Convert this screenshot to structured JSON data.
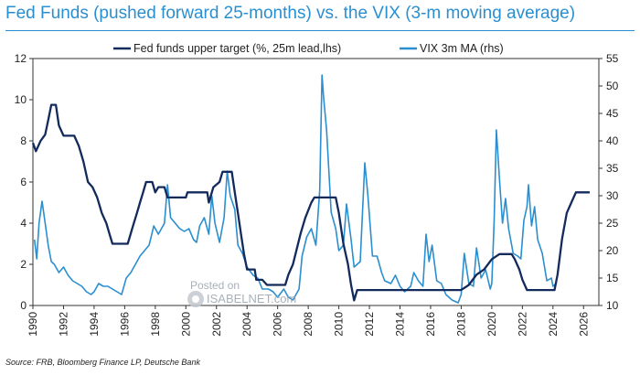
{
  "title": "Fed Funds (pushed forward 25-months) vs. the VIX (3-m moving average)",
  "source": "Source: FRB, Bloomberg Finance LP, Deutsche Bank",
  "watermark": {
    "line1": "Posted on",
    "line2": "ISABELNET.com"
  },
  "colors": {
    "fed": "#132a5c",
    "vix": "#2a8fd0",
    "title": "#2a8fd0"
  },
  "chart_data": {
    "type": "line",
    "legend_position": "top-center",
    "grid": false,
    "x_range": [
      1990,
      2027
    ],
    "x_ticks": [
      "1990",
      "1992",
      "1994",
      "1996",
      "1998",
      "2000",
      "2002",
      "2004",
      "2006",
      "2008",
      "2010",
      "2012",
      "2014",
      "2016",
      "2018",
      "2020",
      "2022",
      "2024",
      "2026"
    ],
    "y_left": {
      "range": [
        0,
        12
      ],
      "ticks": [
        "0",
        "2",
        "4",
        "6",
        "8",
        "10",
        "12"
      ]
    },
    "y_right": {
      "range": [
        10,
        55
      ],
      "ticks": [
        "10",
        "15",
        "20",
        "25",
        "30",
        "35",
        "40",
        "45",
        "50",
        "55"
      ]
    },
    "series": [
      {
        "name": "Fed funds upper target (%, 25m lead,lhs)",
        "axis": "left",
        "points": [
          [
            1990.0,
            7.9
          ],
          [
            1990.2,
            7.5
          ],
          [
            1990.5,
            8.0
          ],
          [
            1990.8,
            8.3
          ],
          [
            1991.0,
            9.0
          ],
          [
            1991.2,
            9.75
          ],
          [
            1991.5,
            9.75
          ],
          [
            1991.7,
            8.75
          ],
          [
            1992.0,
            8.25
          ],
          [
            1992.7,
            8.25
          ],
          [
            1993.0,
            7.75
          ],
          [
            1993.3,
            7.0
          ],
          [
            1993.6,
            6.0
          ],
          [
            1993.9,
            5.75
          ],
          [
            1994.2,
            5.25
          ],
          [
            1994.5,
            4.5
          ],
          [
            1994.8,
            4.0
          ],
          [
            1995.0,
            3.5
          ],
          [
            1995.2,
            3.0
          ],
          [
            1996.2,
            3.0
          ],
          [
            1996.5,
            3.75
          ],
          [
            1996.8,
            4.5
          ],
          [
            1997.0,
            5.0
          ],
          [
            1997.2,
            5.5
          ],
          [
            1997.4,
            6.0
          ],
          [
            1997.8,
            6.0
          ],
          [
            1998.0,
            5.5
          ],
          [
            1998.2,
            5.75
          ],
          [
            1998.6,
            5.75
          ],
          [
            1998.8,
            5.25
          ],
          [
            2000.0,
            5.25
          ],
          [
            2000.1,
            5.5
          ],
          [
            2001.4,
            5.5
          ],
          [
            2001.5,
            5.0
          ],
          [
            2001.8,
            5.75
          ],
          [
            2002.2,
            6.0
          ],
          [
            2002.4,
            6.5
          ],
          [
            2003.0,
            6.5
          ],
          [
            2003.2,
            5.5
          ],
          [
            2003.4,
            4.5
          ],
          [
            2003.6,
            3.5
          ],
          [
            2003.8,
            2.5
          ],
          [
            2004.0,
            1.75
          ],
          [
            2004.5,
            1.75
          ],
          [
            2004.6,
            1.25
          ],
          [
            2005.0,
            1.25
          ],
          [
            2005.3,
            1.0
          ],
          [
            2006.5,
            1.0
          ],
          [
            2006.7,
            1.5
          ],
          [
            2007.0,
            2.0
          ],
          [
            2007.5,
            3.5
          ],
          [
            2007.8,
            4.25
          ],
          [
            2008.2,
            5.0
          ],
          [
            2008.4,
            5.25
          ],
          [
            2009.8,
            5.25
          ],
          [
            2010.0,
            4.5
          ],
          [
            2010.3,
            3.0
          ],
          [
            2010.6,
            2.0
          ],
          [
            2010.8,
            1.0
          ],
          [
            2011.0,
            0.25
          ],
          [
            2011.2,
            0.75
          ],
          [
            2012.0,
            0.75
          ],
          [
            2018.0,
            0.75
          ],
          [
            2018.5,
            1.0
          ],
          [
            2019.0,
            1.5
          ],
          [
            2019.5,
            1.75
          ],
          [
            2020.0,
            2.25
          ],
          [
            2020.5,
            2.5
          ],
          [
            2021.3,
            2.5
          ],
          [
            2021.5,
            2.25
          ],
          [
            2021.8,
            1.75
          ],
          [
            2022.0,
            1.25
          ],
          [
            2022.3,
            0.75
          ],
          [
            2024.1,
            0.75
          ],
          [
            2024.3,
            1.5
          ],
          [
            2024.6,
            3.25
          ],
          [
            2024.9,
            4.5
          ],
          [
            2025.2,
            5.0
          ],
          [
            2025.5,
            5.5
          ],
          [
            2026.4,
            5.5
          ]
        ]
      },
      {
        "name": "VIX 3m MA (rhs)",
        "axis": "right",
        "points": [
          [
            1990.1,
            22.0
          ],
          [
            1990.25,
            18.5
          ],
          [
            1990.4,
            25.0
          ],
          [
            1990.6,
            29.0
          ],
          [
            1990.8,
            25.0
          ],
          [
            1991.0,
            21.0
          ],
          [
            1991.2,
            18.0
          ],
          [
            1991.4,
            17.5
          ],
          [
            1991.7,
            16.0
          ],
          [
            1992.0,
            17.0
          ],
          [
            1992.3,
            15.5
          ],
          [
            1992.6,
            14.5
          ],
          [
            1992.9,
            14.0
          ],
          [
            1993.2,
            13.5
          ],
          [
            1993.5,
            12.5
          ],
          [
            1993.8,
            12.0
          ],
          [
            1994.0,
            12.5
          ],
          [
            1994.3,
            14.0
          ],
          [
            1994.6,
            13.5
          ],
          [
            1994.9,
            13.5
          ],
          [
            1995.2,
            13.0
          ],
          [
            1995.5,
            12.5
          ],
          [
            1995.8,
            12.0
          ],
          [
            1996.1,
            15.0
          ],
          [
            1996.4,
            16.0
          ],
          [
            1996.7,
            17.5
          ],
          [
            1997.0,
            19.0
          ],
          [
            1997.3,
            20.0
          ],
          [
            1997.6,
            21.0
          ],
          [
            1997.9,
            24.5
          ],
          [
            1998.2,
            23.0
          ],
          [
            1998.6,
            25.0
          ],
          [
            1998.8,
            32.0
          ],
          [
            1999.0,
            26.0
          ],
          [
            1999.3,
            25.0
          ],
          [
            1999.6,
            24.0
          ],
          [
            1999.9,
            23.5
          ],
          [
            2000.2,
            24.0
          ],
          [
            2000.5,
            22.0
          ],
          [
            2000.7,
            21.5
          ],
          [
            2000.9,
            24.5
          ],
          [
            2001.2,
            26.0
          ],
          [
            2001.5,
            23.0
          ],
          [
            2001.7,
            30.0
          ],
          [
            2001.9,
            25.0
          ],
          [
            2002.2,
            21.5
          ],
          [
            2002.5,
            26.0
          ],
          [
            2002.7,
            34.5
          ],
          [
            2002.9,
            30.0
          ],
          [
            2003.2,
            27.5
          ],
          [
            2003.4,
            21.0
          ],
          [
            2003.7,
            19.5
          ],
          [
            2004.0,
            17.0
          ],
          [
            2004.4,
            15.5
          ],
          [
            2004.7,
            15.0
          ],
          [
            2005.0,
            13.0
          ],
          [
            2005.4,
            13.0
          ],
          [
            2005.7,
            12.5
          ],
          [
            2006.0,
            11.5
          ],
          [
            2006.4,
            13.0
          ],
          [
            2006.7,
            11.5
          ],
          [
            2007.0,
            11.0
          ],
          [
            2007.4,
            13.0
          ],
          [
            2007.6,
            19.0
          ],
          [
            2007.9,
            22.5
          ],
          [
            2008.2,
            24.0
          ],
          [
            2008.5,
            21.0
          ],
          [
            2008.75,
            31.0
          ],
          [
            2008.9,
            52.0
          ],
          [
            2009.0,
            48.0
          ],
          [
            2009.2,
            42.0
          ],
          [
            2009.5,
            27.0
          ],
          [
            2009.8,
            24.0
          ],
          [
            2010.0,
            20.0
          ],
          [
            2010.3,
            21.0
          ],
          [
            2010.5,
            28.5
          ],
          [
            2010.8,
            22.0
          ],
          [
            2011.0,
            17.0
          ],
          [
            2011.4,
            18.0
          ],
          [
            2011.7,
            36.0
          ],
          [
            2011.9,
            30.0
          ],
          [
            2012.2,
            19.0
          ],
          [
            2012.5,
            19.0
          ],
          [
            2012.8,
            16.0
          ],
          [
            2013.0,
            14.5
          ],
          [
            2013.4,
            14.0
          ],
          [
            2013.7,
            15.5
          ],
          [
            2014.0,
            13.5
          ],
          [
            2014.3,
            12.5
          ],
          [
            2014.7,
            13.5
          ],
          [
            2014.9,
            16.0
          ],
          [
            2015.2,
            14.5
          ],
          [
            2015.5,
            13.5
          ],
          [
            2015.7,
            23.0
          ],
          [
            2015.9,
            18.0
          ],
          [
            2016.1,
            21.0
          ],
          [
            2016.4,
            14.5
          ],
          [
            2016.7,
            14.0
          ],
          [
            2017.0,
            12.0
          ],
          [
            2017.4,
            11.0
          ],
          [
            2017.8,
            10.5
          ],
          [
            2018.0,
            12.0
          ],
          [
            2018.2,
            19.5
          ],
          [
            2018.5,
            14.0
          ],
          [
            2018.8,
            13.5
          ],
          [
            2019.0,
            20.5
          ],
          [
            2019.3,
            15.0
          ],
          [
            2019.6,
            16.5
          ],
          [
            2019.9,
            13.0
          ],
          [
            2020.0,
            14.0
          ],
          [
            2020.15,
            25.0
          ],
          [
            2020.3,
            42.0
          ],
          [
            2020.5,
            33.0
          ],
          [
            2020.7,
            25.0
          ],
          [
            2020.9,
            29.5
          ],
          [
            2021.1,
            24.0
          ],
          [
            2021.4,
            19.5
          ],
          [
            2021.7,
            19.0
          ],
          [
            2021.9,
            18.5
          ],
          [
            2022.1,
            25.5
          ],
          [
            2022.3,
            28.0
          ],
          [
            2022.4,
            32.0
          ],
          [
            2022.6,
            24.5
          ],
          [
            2022.8,
            28.0
          ],
          [
            2023.0,
            22.0
          ],
          [
            2023.3,
            19.5
          ],
          [
            2023.6,
            14.5
          ],
          [
            2023.9,
            15.0
          ],
          [
            2024.0,
            13.5
          ],
          [
            2024.2,
            14.0
          ]
        ]
      }
    ]
  }
}
